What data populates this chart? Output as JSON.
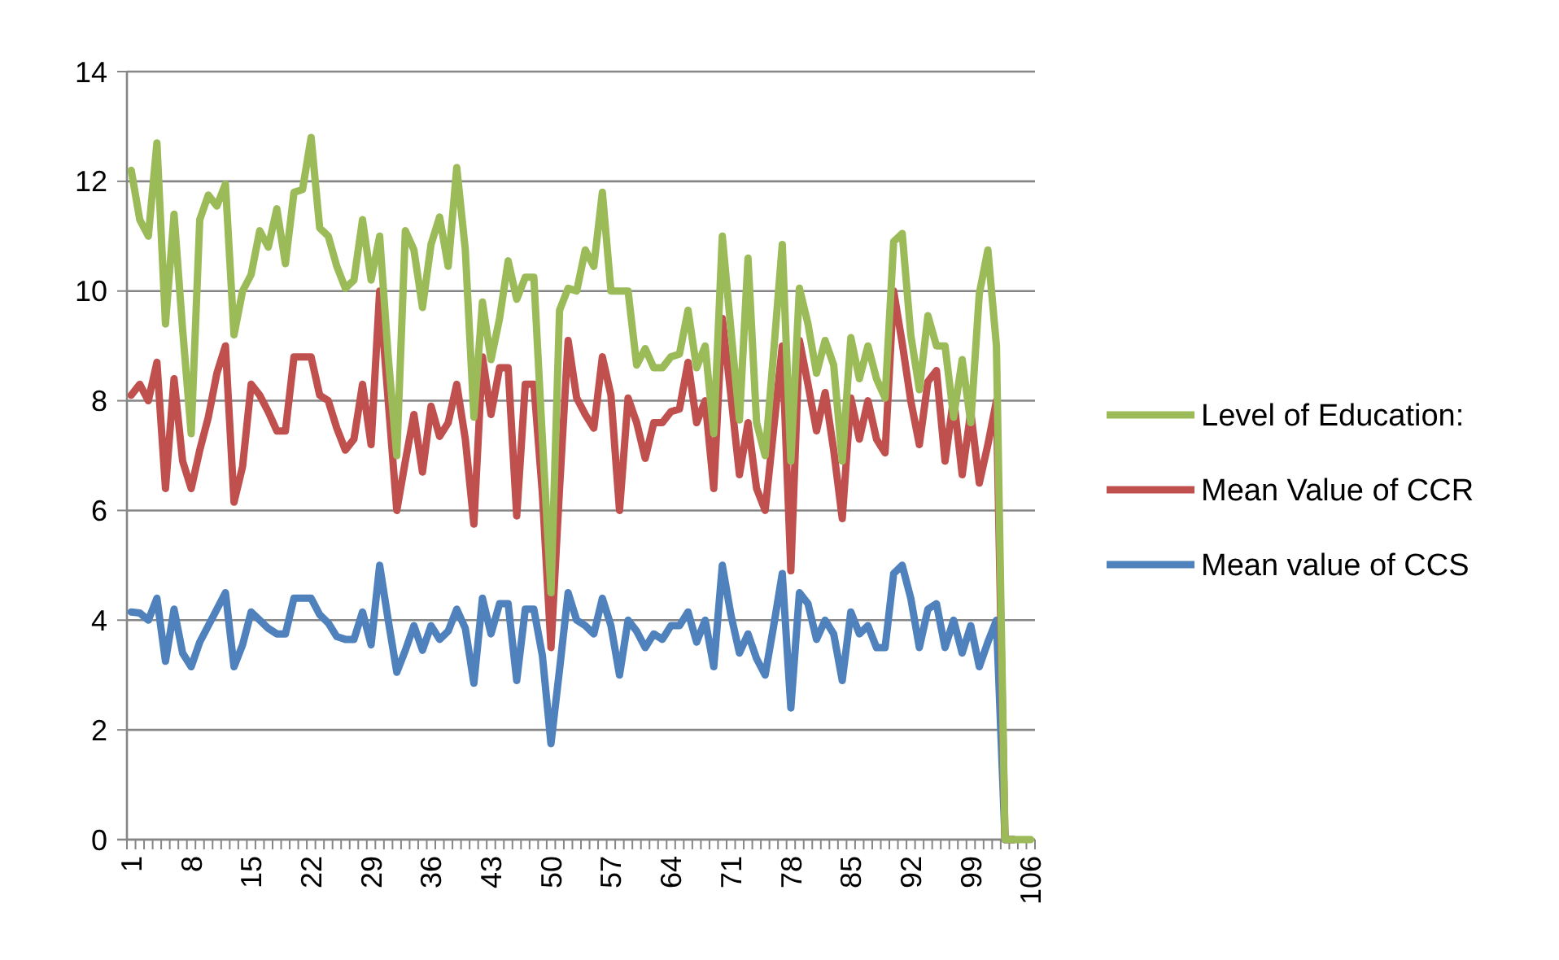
{
  "chart_data": {
    "type": "line",
    "categories": [
      "1",
      null,
      null,
      null,
      null,
      null,
      null,
      "8",
      null,
      null,
      null,
      null,
      null,
      null,
      "15",
      null,
      null,
      null,
      null,
      null,
      null,
      "22",
      null,
      null,
      null,
      null,
      null,
      null,
      "29",
      null,
      null,
      null,
      null,
      null,
      null,
      "36",
      null,
      null,
      null,
      null,
      null,
      null,
      "43",
      null,
      null,
      null,
      null,
      null,
      null,
      "50",
      null,
      null,
      null,
      null,
      null,
      null,
      "57",
      null,
      null,
      null,
      null,
      null,
      null,
      "64",
      null,
      null,
      null,
      null,
      null,
      null,
      "71",
      null,
      null,
      null,
      null,
      null,
      null,
      "78",
      null,
      null,
      null,
      null,
      null,
      null,
      "85",
      null,
      null,
      null,
      null,
      null,
      null,
      "92",
      null,
      null,
      null,
      null,
      null,
      null,
      "99",
      null,
      null,
      null,
      null,
      null,
      null,
      "106"
    ],
    "series": [
      {
        "name": "Level of Education:",
        "color": "#9bbb59",
        "values": [
          12.2,
          11.3,
          11.0,
          12.7,
          9.4,
          11.4,
          9.3,
          7.4,
          11.3,
          11.75,
          11.55,
          11.95,
          9.2,
          10.0,
          10.3,
          11.1,
          10.8,
          11.5,
          10.5,
          11.8,
          11.85,
          12.8,
          11.15,
          11.0,
          10.45,
          10.05,
          10.2,
          11.3,
          10.2,
          11.0,
          8.8,
          7.0,
          11.1,
          10.75,
          9.7,
          10.85,
          11.35,
          10.45,
          12.25,
          10.75,
          7.7,
          9.8,
          8.75,
          9.5,
          10.55,
          9.85,
          10.25,
          10.25,
          7.3,
          4.5,
          9.65,
          10.05,
          10.0,
          10.75,
          10.45,
          11.8,
          10.0,
          10.0,
          10.0,
          8.65,
          8.95,
          8.6,
          8.6,
          8.8,
          8.85,
          9.65,
          8.6,
          9.0,
          7.4,
          11.0,
          9.3,
          7.65,
          10.6,
          7.6,
          7.0,
          8.9,
          10.85,
          6.9,
          10.05,
          9.4,
          8.5,
          9.1,
          8.65,
          6.9,
          9.15,
          8.4,
          9.0,
          8.4,
          8.05,
          10.9,
          11.05,
          9.2,
          8.2,
          9.55,
          9.0,
          9.0,
          7.7,
          8.75,
          7.6,
          9.95,
          10.75,
          9.0,
          0,
          0,
          0,
          0
        ]
      },
      {
        "name": "Mean Value of CCR",
        "color": "#c0504d",
        "values": [
          8.1,
          8.3,
          8.0,
          8.7,
          6.4,
          8.4,
          6.9,
          6.4,
          7.1,
          7.7,
          8.5,
          9.0,
          6.15,
          6.8,
          8.3,
          8.1,
          7.8,
          7.45,
          7.45,
          8.8,
          8.8,
          8.8,
          8.1,
          8.0,
          7.5,
          7.1,
          7.3,
          8.3,
          7.2,
          10.0,
          8.0,
          6.0,
          6.9,
          7.75,
          6.7,
          7.9,
          7.35,
          7.6,
          8.3,
          7.3,
          5.75,
          8.8,
          7.75,
          8.6,
          8.6,
          5.9,
          8.3,
          8.3,
          6.3,
          3.5,
          6.4,
          9.1,
          8.05,
          7.75,
          7.5,
          8.8,
          8.1,
          6.0,
          8.05,
          7.6,
          6.95,
          7.6,
          7.6,
          7.8,
          7.85,
          8.7,
          7.6,
          8.0,
          6.4,
          9.5,
          8.1,
          6.65,
          7.6,
          6.4,
          6.0,
          7.5,
          9.0,
          4.9,
          9.1,
          8.3,
          7.45,
          8.15,
          7.1,
          5.85,
          8.05,
          7.3,
          8.0,
          7.3,
          7.05,
          10.0,
          9.05,
          8.0,
          7.2,
          8.35,
          8.55,
          6.9,
          8.05,
          6.65,
          7.8,
          6.5,
          7.2,
          8.0,
          0,
          0,
          null,
          null
        ]
      },
      {
        "name": "Mean value of CCS",
        "color": "#4f81bd",
        "values": [
          4.15,
          4.13,
          4.0,
          4.4,
          3.25,
          4.2,
          3.4,
          3.15,
          3.6,
          3.9,
          4.2,
          4.5,
          3.15,
          3.55,
          4.15,
          4.0,
          3.85,
          3.75,
          3.75,
          4.4,
          4.4,
          4.4,
          4.1,
          3.95,
          3.7,
          3.65,
          3.65,
          4.15,
          3.55,
          5.0,
          4.0,
          3.05,
          3.45,
          3.9,
          3.45,
          3.9,
          3.65,
          3.8,
          4.2,
          3.85,
          2.85,
          4.4,
          3.75,
          4.3,
          4.3,
          2.9,
          4.2,
          4.2,
          3.35,
          1.75,
          3.1,
          4.5,
          4.0,
          3.9,
          3.75,
          4.4,
          3.9,
          3.0,
          4.0,
          3.8,
          3.5,
          3.75,
          3.65,
          3.9,
          3.9,
          4.15,
          3.6,
          4.0,
          3.15,
          5.0,
          4.1,
          3.4,
          3.75,
          3.3,
          3.0,
          3.9,
          4.85,
          2.4,
          4.5,
          4.3,
          3.65,
          4.0,
          3.75,
          2.9,
          4.15,
          3.75,
          3.9,
          3.5,
          3.5,
          4.85,
          5.0,
          4.4,
          3.5,
          4.2,
          4.3,
          3.5,
          4.0,
          3.4,
          3.9,
          3.15,
          3.6,
          4.0,
          0,
          0,
          null,
          null
        ]
      }
    ],
    "ylim": [
      0,
      14
    ],
    "yticks": [
      0,
      2,
      4,
      6,
      8,
      10,
      12,
      14
    ],
    "grid": "y",
    "legend": "right"
  }
}
